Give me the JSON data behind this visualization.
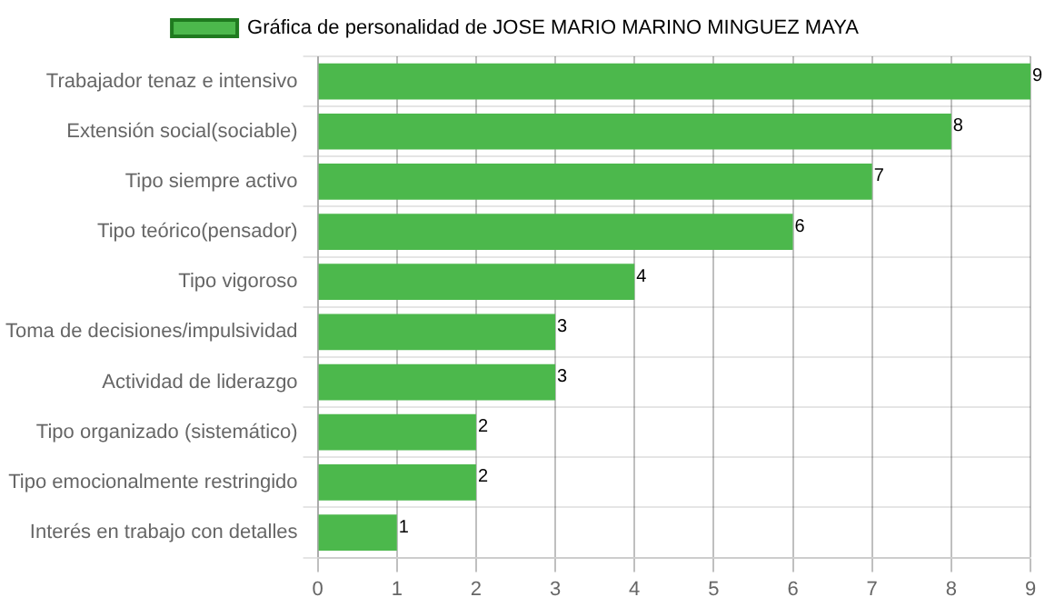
{
  "chart_data": {
    "type": "bar",
    "orientation": "horizontal",
    "categories": [
      "Trabajador tenaz e intensivo",
      "Extensión social(sociable)",
      "Tipo siempre activo",
      "Tipo teórico(pensador)",
      "Tipo vigoroso",
      "Toma de decisiones/impulsividad",
      "Actividad de liderazgo",
      "Tipo organizado (sistemático)",
      "Tipo emocionalmente restringido",
      "Interés en trabajo con detalles"
    ],
    "series": [
      {
        "name": "Gráfica de personalidad de JOSE MARIO MARINO MINGUEZ MAYA",
        "color": "#4cb84c",
        "values": [
          9,
          8,
          7,
          6,
          4,
          3,
          3,
          2,
          2,
          1
        ]
      }
    ],
    "xlim": [
      0,
      9
    ],
    "xticks": [
      0,
      1,
      2,
      3,
      4,
      5,
      6,
      7,
      8,
      9
    ],
    "grid": true,
    "legend": "top",
    "data_labels": true
  }
}
